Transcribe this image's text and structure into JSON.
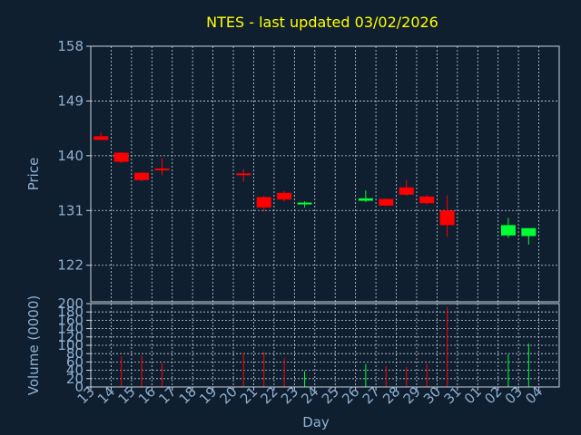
{
  "chart_data": {
    "type": "candlestick",
    "title": "NTES - last updated 03/02/2026",
    "xlabel": "Day",
    "price_panel": {
      "ylabel": "Price",
      "ylim": [
        116,
        158
      ],
      "yticks": [
        "158",
        "149",
        "140",
        "131",
        "122"
      ],
      "ytick_values": [
        158,
        149,
        140,
        131,
        122
      ]
    },
    "volume_panel": {
      "ylabel": "Volume (0000)",
      "ylim": [
        0,
        200
      ],
      "yticks": [
        "200",
        "180",
        "160",
        "140",
        "120",
        "100",
        "80",
        "60",
        "40",
        "20",
        "0"
      ],
      "ytick_values": [
        200,
        180,
        160,
        140,
        120,
        100,
        80,
        60,
        40,
        20,
        0
      ]
    },
    "x_tick_labels": [
      "13",
      "14",
      "15",
      "16",
      "17",
      "18",
      "19",
      "20",
      "21",
      "22",
      "23",
      "24",
      "25",
      "26",
      "27",
      "28",
      "29",
      "30",
      "31",
      "01",
      "02",
      "03",
      "04"
    ],
    "candles": [
      {
        "day": "13",
        "open": 143.2,
        "high": 143.8,
        "low": 142.6,
        "close": 142.6,
        "volume": 0
      },
      {
        "day": "14",
        "open": 140.5,
        "high": 140.6,
        "low": 138.8,
        "close": 139.0,
        "volume": 73
      },
      {
        "day": "15",
        "open": 137.2,
        "high": 137.3,
        "low": 135.8,
        "close": 136.0,
        "volume": 75
      },
      {
        "day": "16",
        "open": 137.9,
        "high": 139.6,
        "low": 136.8,
        "close": 137.6,
        "volume": 57
      },
      {
        "day": "20",
        "open": 137.1,
        "high": 137.8,
        "low": 135.7,
        "close": 136.9,
        "volume": 82
      },
      {
        "day": "21",
        "open": 133.2,
        "high": 133.4,
        "low": 130.8,
        "close": 131.5,
        "volume": 85
      },
      {
        "day": "22",
        "open": 133.9,
        "high": 134.2,
        "low": 132.5,
        "close": 132.8,
        "volume": 70
      },
      {
        "day": "23",
        "open": 132.0,
        "high": 132.5,
        "low": 131.5,
        "close": 132.3,
        "volume": 38
      },
      {
        "day": "26",
        "open": 132.6,
        "high": 134.3,
        "low": 132.4,
        "close": 133.0,
        "volume": 55
      },
      {
        "day": "27",
        "open": 132.9,
        "high": 133.0,
        "low": 131.7,
        "close": 131.8,
        "volume": 50
      },
      {
        "day": "28",
        "open": 134.8,
        "high": 136.0,
        "low": 133.4,
        "close": 133.6,
        "volume": 48
      },
      {
        "day": "29",
        "open": 133.3,
        "high": 133.6,
        "low": 132.0,
        "close": 132.2,
        "volume": 55
      },
      {
        "day": "30",
        "open": 131.0,
        "high": 133.5,
        "low": 126.7,
        "close": 128.6,
        "volume": 192
      },
      {
        "day": "02",
        "open": 126.9,
        "high": 129.8,
        "low": 126.5,
        "close": 128.6,
        "volume": 78
      },
      {
        "day": "03",
        "open": 126.8,
        "high": 128.0,
        "low": 125.4,
        "close": 128.1,
        "volume": 104
      }
    ],
    "grid": true,
    "colors": {
      "background": "#0f1f30",
      "title": "#ffff00",
      "axis_text": "#8fb0d0",
      "grid": "#c8d4e0",
      "up": "#00ff33",
      "down": "#ff0000",
      "frame": "#c8d4e0"
    }
  }
}
